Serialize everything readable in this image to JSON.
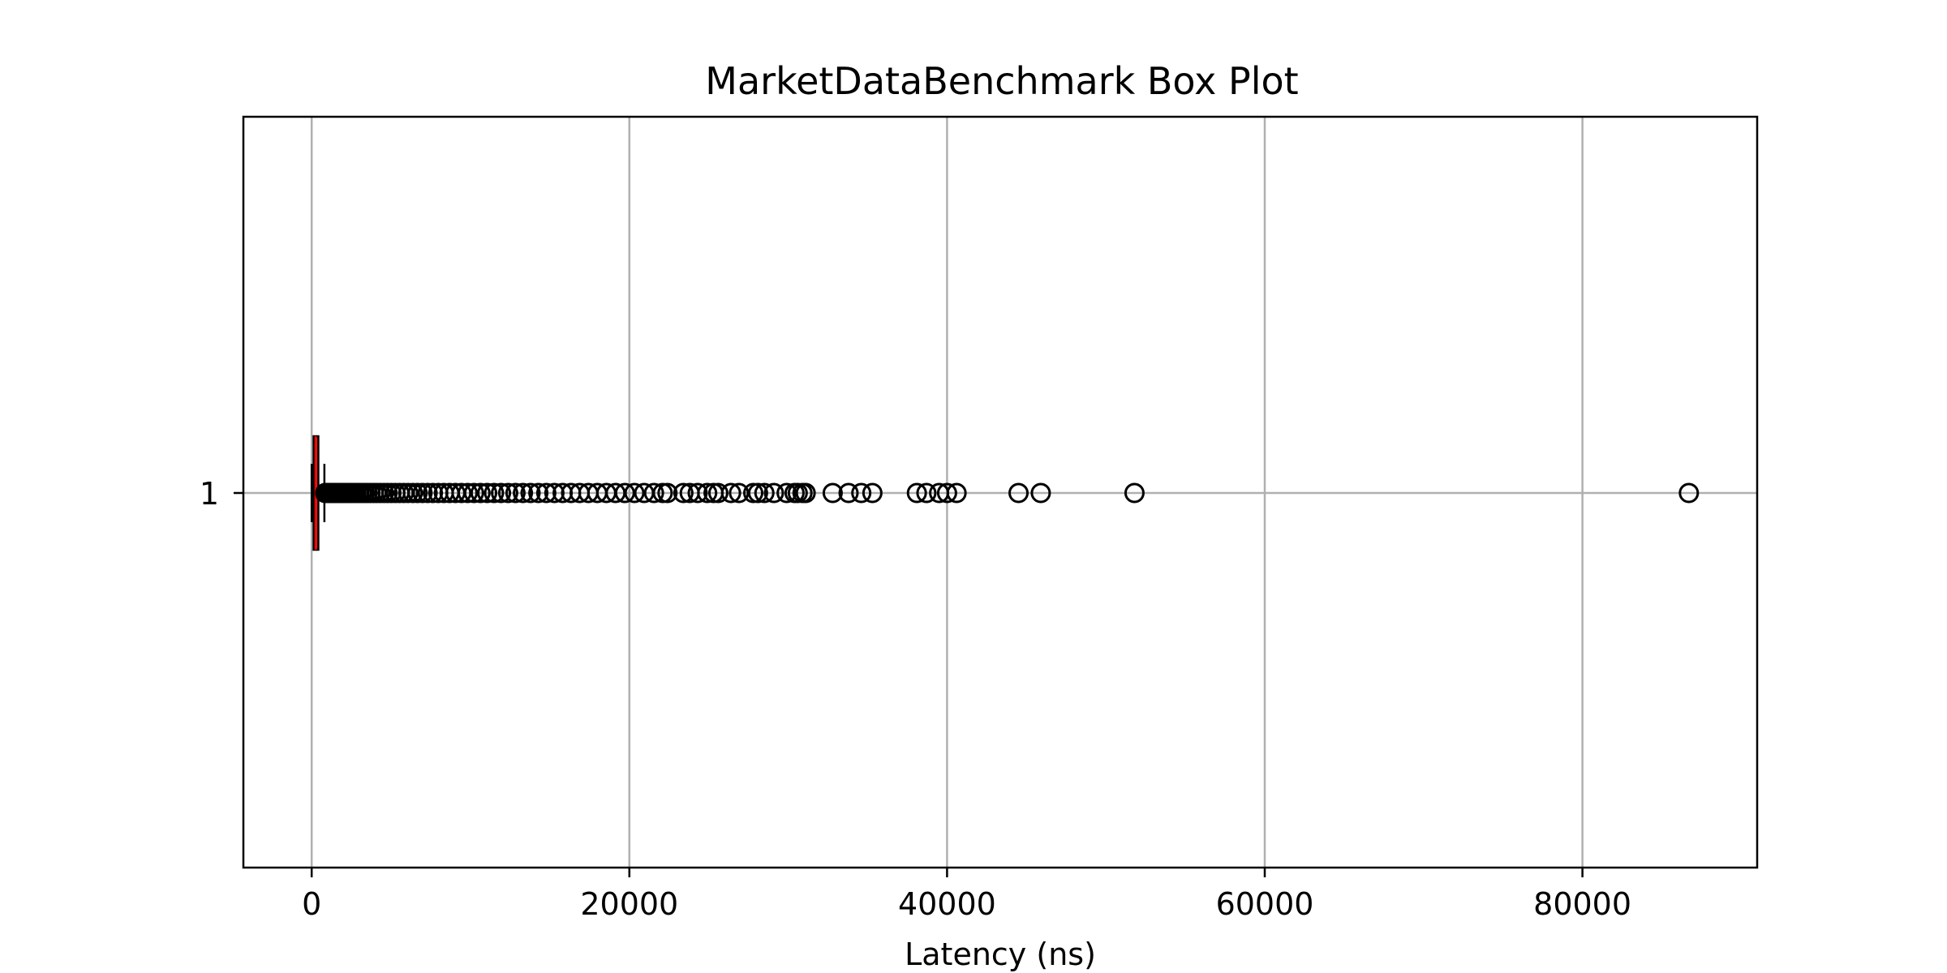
{
  "chart_data": {
    "type": "boxplot",
    "orientation": "horizontal",
    "title": "MarketDataBenchmark Box Plot",
    "xlabel": "Latency (ns)",
    "ylabel": "",
    "xlim": [
      -4300,
      91000
    ],
    "x_ticks": [
      0,
      20000,
      40000,
      60000,
      80000
    ],
    "x_tick_labels": [
      "0",
      "20000",
      "40000",
      "60000",
      "80000"
    ],
    "category_labels": [
      "1"
    ],
    "grid": true,
    "legend": "none",
    "boxes": [
      {
        "category": "1",
        "whisker_low": 0,
        "q1": 120,
        "median": 250,
        "q3": 420,
        "whisker_high": 800,
        "outliers": [
          850,
          900,
          960,
          1020,
          1090,
          1160,
          1240,
          1320,
          1400,
          1490,
          1580,
          1680,
          1780,
          1890,
          2000,
          2120,
          2250,
          2380,
          2520,
          2670,
          2820,
          2980,
          3150,
          3330,
          3510,
          3700,
          3900,
          4100,
          4320,
          4550,
          4780,
          5020,
          5270,
          5530,
          5800,
          6080,
          6370,
          6670,
          6980,
          7300,
          7630,
          7970,
          8320,
          8680,
          9050,
          9430,
          9820,
          10220,
          10630,
          11050,
          11480,
          11920,
          12370,
          12830,
          13300,
          13780,
          14270,
          14770,
          15280,
          15800,
          16330,
          16870,
          17420,
          17980,
          18550,
          19130,
          19720,
          20320,
          20930,
          21550,
          22100,
          22400,
          23400,
          23800,
          24300,
          24900,
          25300,
          25600,
          26400,
          26900,
          27800,
          28100,
          28500,
          29100,
          29900,
          30400,
          30600,
          30900,
          31100,
          32800,
          33800,
          34600,
          35300,
          38100,
          38700,
          39500,
          40000,
          40600,
          44500,
          45900,
          51800,
          86700
        ]
      }
    ],
    "colors": {
      "median": "#ff0000",
      "box_fill": "#d62728",
      "box_edge": "#000000",
      "grid": "#b0b0b0",
      "flier_edge": "#000000"
    }
  }
}
